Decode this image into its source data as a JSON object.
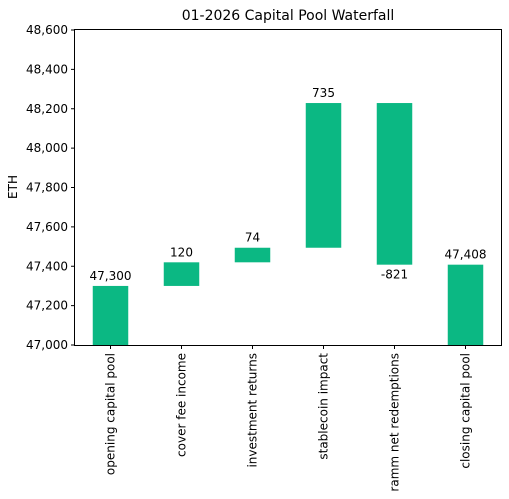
{
  "chart_data": {
    "type": "bar",
    "subtype": "waterfall",
    "title": "01-2026 Capital Pool Waterfall",
    "xlabel": "",
    "ylabel": "ETH",
    "ylim": [
      47000,
      48600
    ],
    "yticks": [
      47000,
      47200,
      47400,
      47600,
      47800,
      48000,
      48200,
      48400,
      48600
    ],
    "ytick_labels": [
      "47,000",
      "47,200",
      "47,400",
      "47,600",
      "47,800",
      "48,000",
      "48,200",
      "48,400",
      "48,600"
    ],
    "grid": false,
    "bar_color": "#0bb883",
    "categories": [
      "opening capital pool",
      "cover fee income",
      "investment returns",
      "stablecoin impact",
      "ramm net redemptions",
      "closing capital pool"
    ],
    "bars": [
      {
        "base": 47000,
        "top": 47300,
        "label": "47,300",
        "label_pos": "above"
      },
      {
        "base": 47300,
        "top": 47420,
        "label": "120",
        "label_pos": "above"
      },
      {
        "base": 47420,
        "top": 47494,
        "label": "74",
        "label_pos": "above"
      },
      {
        "base": 47494,
        "top": 48229,
        "label": "735",
        "label_pos": "above"
      },
      {
        "base": 47408,
        "top": 48229,
        "label": "-821",
        "label_pos": "below"
      },
      {
        "base": 47000,
        "top": 47408,
        "label": "47,408",
        "label_pos": "above"
      }
    ]
  }
}
